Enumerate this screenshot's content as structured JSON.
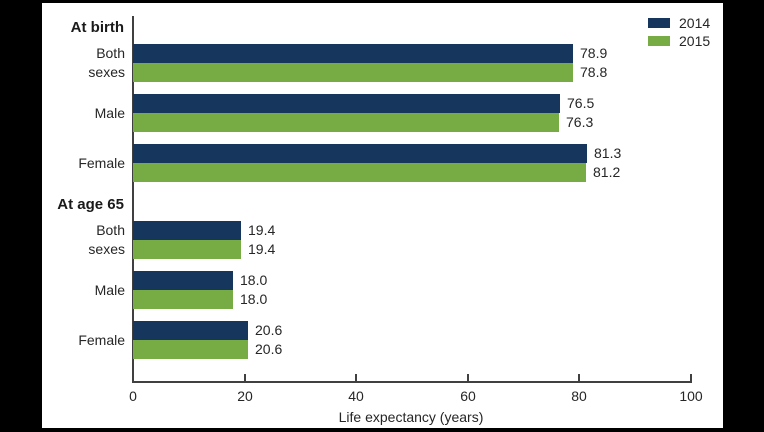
{
  "window": {
    "background": "#000000",
    "panel_background": "#ffffff",
    "axis_color": "#404040",
    "text_color": "#262626"
  },
  "chart_data": {
    "type": "bar",
    "orientation": "horizontal",
    "title": "",
    "xlabel": "Life expectancy (years)",
    "ylabel": "",
    "xlim": [
      0,
      100
    ],
    "xticks": [
      0,
      20,
      40,
      60,
      80,
      100
    ],
    "grid": false,
    "legend_position": "top-right",
    "value_decimals": 1,
    "series_names": [
      "2014",
      "2015"
    ],
    "series_colors": {
      "2014": "#17365d",
      "2015": "#77ab43"
    },
    "sections": [
      {
        "header": "At birth",
        "categories": [
          "Both sexes",
          "Male",
          "Female"
        ],
        "series": [
          {
            "name": "2014",
            "values": [
              78.9,
              76.5,
              81.3
            ]
          },
          {
            "name": "2015",
            "values": [
              78.8,
              76.3,
              81.2
            ]
          }
        ]
      },
      {
        "header": "At age 65",
        "categories": [
          "Both sexes",
          "Male",
          "Female"
        ],
        "series": [
          {
            "name": "2014",
            "values": [
              19.4,
              18.0,
              20.6
            ]
          },
          {
            "name": "2015",
            "values": [
              19.4,
              18.0,
              20.6
            ]
          }
        ]
      }
    ]
  }
}
